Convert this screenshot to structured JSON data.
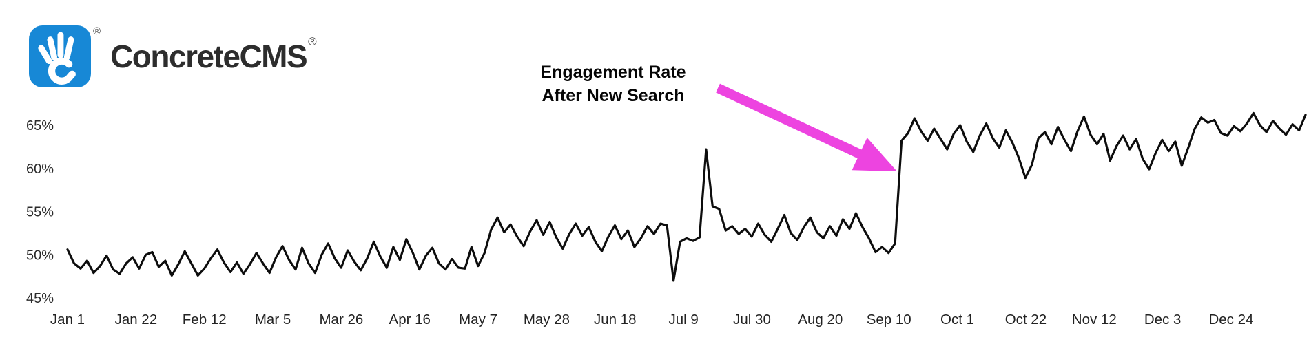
{
  "brand": {
    "wordmark": "ConcreteCMS",
    "registered_mark": "®",
    "logo_color": "#1788D6",
    "hand_icon_color": "#ffffff"
  },
  "annotation": {
    "line1": "Engagement Rate",
    "line2": "After New Search",
    "arrow_color": "#ED44E0"
  },
  "chart_data": {
    "type": "line",
    "title": "Engagement Rate After New Search",
    "xlabel": "",
    "ylabel": "",
    "grid": false,
    "legend": "none",
    "line_color": "#0d0d0d",
    "background": "#ffffff",
    "ylim": [
      44,
      68
    ],
    "yticks": [
      45,
      50,
      55,
      60,
      65
    ],
    "ytick_suffix": "%",
    "categories": [
      "Jan 1",
      "Jan 22",
      "Feb 12",
      "Mar 5",
      "Mar 26",
      "Apr 16",
      "May 7",
      "May 28",
      "Jun 18",
      "Jul 9",
      "Jul 30",
      "Aug 20",
      "Sep 10",
      "Oct 1",
      "Oct 22",
      "Nov 12",
      "Dec 3",
      "Dec 24"
    ],
    "tick_interval_days": 21,
    "series": [
      {
        "name": "Engagement Rate",
        "unit": "%",
        "day_step": 2,
        "values": [
          50.6,
          49.0,
          48.4,
          49.3,
          47.9,
          48.7,
          49.9,
          48.3,
          47.8,
          49.0,
          49.7,
          48.4,
          50.0,
          50.3,
          48.6,
          49.3,
          47.6,
          48.9,
          50.4,
          49.0,
          47.6,
          48.4,
          49.6,
          50.6,
          49.1,
          48.0,
          49.1,
          47.8,
          48.9,
          50.2,
          49.0,
          47.9,
          49.7,
          51.0,
          49.4,
          48.3,
          50.8,
          49.0,
          47.9,
          50.0,
          51.3,
          49.6,
          48.5,
          50.5,
          49.2,
          48.2,
          49.6,
          51.5,
          49.8,
          48.5,
          50.9,
          49.4,
          51.8,
          50.2,
          48.3,
          49.9,
          50.8,
          49.0,
          48.3,
          49.5,
          48.5,
          48.4,
          50.9,
          48.7,
          50.2,
          52.9,
          54.3,
          52.6,
          53.5,
          52.1,
          51.0,
          52.7,
          54.0,
          52.3,
          53.8,
          52.0,
          50.7,
          52.4,
          53.6,
          52.2,
          53.2,
          51.5,
          50.4,
          52.1,
          53.4,
          51.8,
          52.8,
          50.9,
          51.9,
          53.3,
          52.4,
          53.6,
          53.4,
          47.0,
          51.5,
          51.9,
          51.6,
          52.0,
          62.2,
          55.6,
          55.3,
          52.8,
          53.3,
          52.4,
          53.0,
          52.1,
          53.6,
          52.3,
          51.5,
          53.0,
          54.6,
          52.5,
          51.7,
          53.2,
          54.3,
          52.6,
          51.9,
          53.3,
          52.2,
          54.1,
          53.0,
          54.8,
          53.2,
          51.9,
          50.3,
          50.9,
          50.2,
          51.3,
          63.2,
          64.1,
          65.8,
          64.3,
          63.2,
          64.6,
          63.4,
          62.2,
          64.0,
          65.0,
          63.1,
          61.9,
          63.8,
          65.2,
          63.5,
          62.4,
          64.4,
          63.0,
          61.2,
          58.9,
          60.4,
          63.5,
          64.2,
          62.8,
          64.8,
          63.3,
          62.0,
          64.3,
          66.0,
          63.9,
          62.8,
          64.0,
          60.9,
          62.6,
          63.8,
          62.2,
          63.4,
          61.1,
          59.9,
          61.8,
          63.3,
          62.0,
          63.1,
          60.3,
          62.4,
          64.6,
          65.9,
          65.3,
          65.6,
          64.1,
          63.8,
          64.9,
          64.3,
          65.2,
          66.4,
          65.0,
          64.2,
          65.5,
          64.6,
          63.9,
          65.1,
          64.4,
          66.2
        ]
      }
    ],
    "annotations": [
      {
        "text": "Engagement Rate After New Search",
        "points_to": "step increase just after Sep 10"
      }
    ]
  }
}
